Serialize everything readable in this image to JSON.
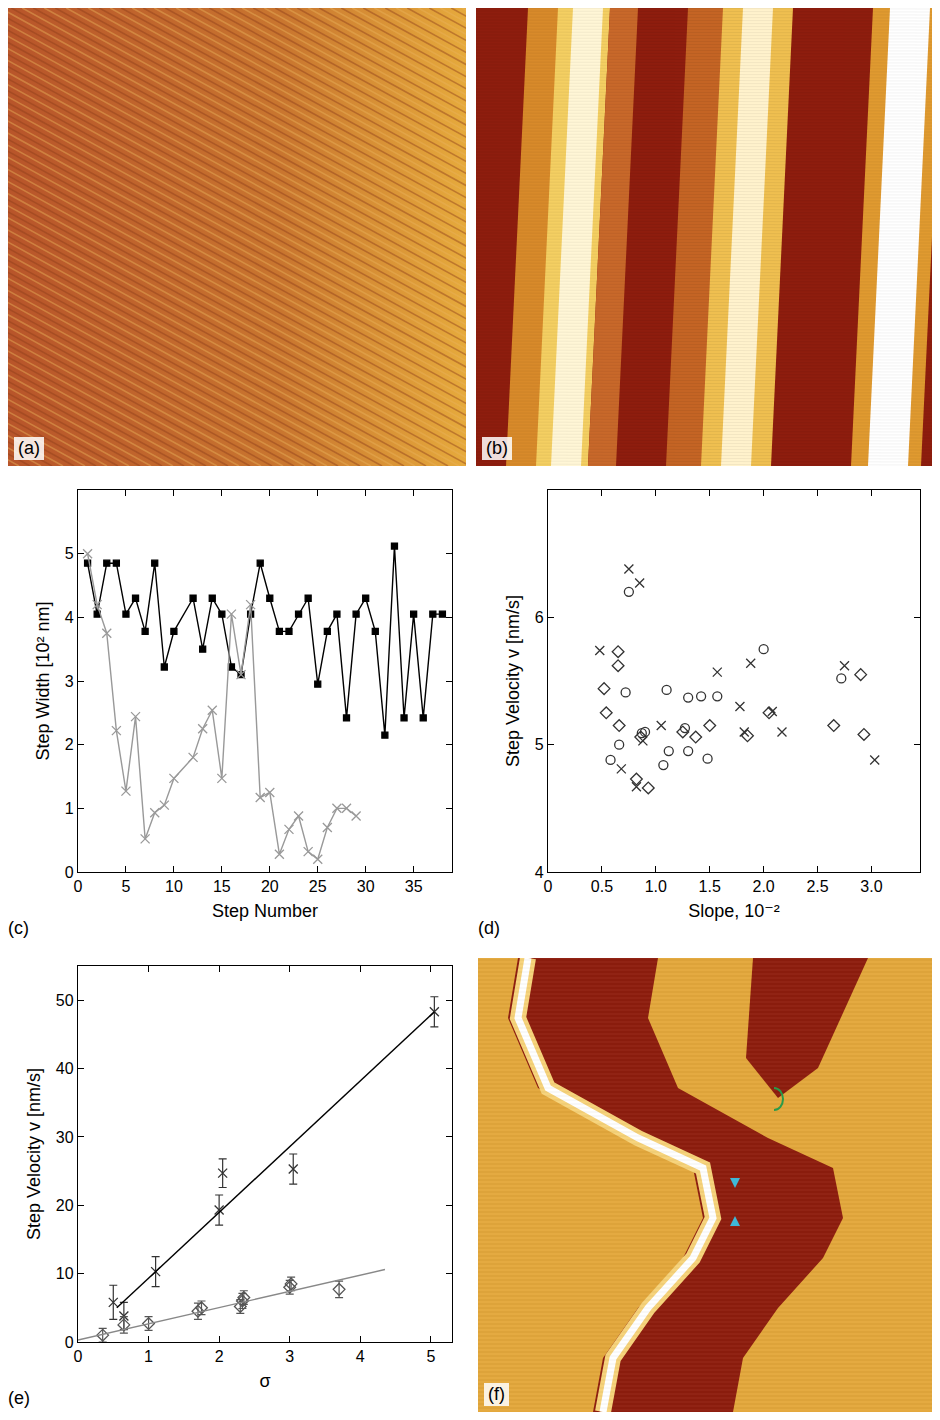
{
  "chart_data": [
    {
      "type": "image",
      "label": "(a)"
    },
    {
      "type": "image",
      "label": "(b)"
    },
    {
      "type": "line",
      "label": "(c)",
      "x_label": "Step Number",
      "y_label": "Step Width [10² nm]",
      "xlim": [
        0,
        39
      ],
      "xticks": [
        0,
        5,
        10,
        15,
        20,
        25,
        30,
        35
      ],
      "ylim": [
        0,
        6
      ],
      "yticks": [
        0,
        1,
        2,
        3,
        4,
        5
      ],
      "series": [
        {
          "color": "#000000",
          "marker": "square",
          "x": [
            1,
            2,
            3,
            4,
            5,
            6,
            7,
            8,
            9,
            10,
            12,
            13,
            14,
            15,
            16,
            17,
            18,
            19,
            20,
            21,
            22,
            23,
            24,
            25,
            26,
            27,
            28,
            29,
            30,
            31,
            32,
            33,
            34,
            35,
            36,
            37,
            38
          ],
          "values": [
            4.85,
            4.05,
            4.85,
            4.85,
            4.05,
            4.3,
            3.78,
            4.85,
            3.22,
            3.78,
            4.3,
            3.5,
            4.3,
            4.05,
            3.22,
            3.1,
            4.05,
            4.85,
            4.3,
            3.78,
            3.78,
            4.05,
            4.3,
            2.95,
            3.78,
            4.05,
            2.42,
            4.05,
            4.3,
            3.78,
            2.15,
            5.12,
            2.42,
            4.05,
            2.42,
            4.05,
            4.05
          ]
        },
        {
          "color": "#999999",
          "marker": "x",
          "x": [
            1,
            2,
            3,
            4,
            5,
            6,
            7,
            8,
            9,
            10,
            12,
            13,
            14,
            15,
            16,
            17,
            18,
            19,
            20,
            21,
            22,
            23,
            24,
            25,
            26,
            27,
            28,
            29
          ],
          "values": [
            5.0,
            4.2,
            3.75,
            2.22,
            1.27,
            2.44,
            0.52,
            0.93,
            1.05,
            1.47,
            1.8,
            2.25,
            2.54,
            1.47,
            4.05,
            3.1,
            4.2,
            1.17,
            1.25,
            0.28,
            0.67,
            0.88,
            0.32,
            0.2,
            0.7,
            1.0,
            1.0,
            0.88
          ]
        }
      ]
    },
    {
      "type": "scatter",
      "label": "(d)",
      "x_label": "Slope, 10⁻²",
      "y_label": "Step Velocity v [nm/s]",
      "xlim": [
        0,
        3.45
      ],
      "xticks": [
        0,
        0.5,
        {
          "value": 1,
          "label": "1.0"
        },
        1.5,
        {
          "value": 2,
          "label": "2.0"
        },
        2.5,
        {
          "value": 3,
          "label": "3.0"
        }
      ],
      "ylim": [
        4,
        7
      ],
      "yticks": [
        4,
        5,
        6
      ],
      "series": [
        {
          "color": "#333333",
          "marker": "x",
          "x": [
            0.48,
            0.68,
            0.75,
            0.82,
            0.85,
            0.88,
            1.05,
            1.57,
            1.78,
            1.82,
            1.88,
            2.08,
            2.17,
            2.75,
            3.03
          ],
          "values": [
            5.74,
            4.81,
            6.38,
            4.67,
            6.27,
            5.03,
            5.15,
            5.57,
            5.3,
            5.1,
            5.64,
            5.26,
            5.1,
            5.62,
            4.88
          ]
        },
        {
          "color": "#333333",
          "marker": "circle",
          "x": [
            0.58,
            0.66,
            0.72,
            0.75,
            0.87,
            0.9,
            1.07,
            1.1,
            1.12,
            1.27,
            1.3,
            1.3,
            1.42,
            1.48,
            1.57,
            2.0,
            2.72
          ],
          "values": [
            4.88,
            5.0,
            5.41,
            6.2,
            5.09,
            5.1,
            4.84,
            5.43,
            4.95,
            5.13,
            5.37,
            4.95,
            5.38,
            4.89,
            5.38,
            5.75,
            5.52
          ]
        },
        {
          "color": "#333333",
          "marker": "diamond",
          "x": [
            0.52,
            0.54,
            0.65,
            0.65,
            0.66,
            0.82,
            0.86,
            0.93,
            1.25,
            1.37,
            1.5,
            1.85,
            2.05,
            2.65,
            2.9,
            2.93
          ],
          "values": [
            5.44,
            5.25,
            5.62,
            5.73,
            5.15,
            4.73,
            5.06,
            4.66,
            5.1,
            5.06,
            5.15,
            5.07,
            5.25,
            5.15,
            5.55,
            5.08
          ]
        }
      ]
    },
    {
      "type": "scatter",
      "label": "(e)",
      "x_label": "σ",
      "y_label": "Step Velocity v [nm/s]",
      "xlim": [
        0,
        5.3
      ],
      "xticks": [
        0,
        1,
        2,
        3,
        4,
        5
      ],
      "ylim": [
        0,
        55
      ],
      "yticks": [
        0,
        10,
        20,
        30,
        40,
        50
      ],
      "series": [
        {
          "type": "scatter",
          "color": "#333333",
          "marker": "x",
          "x": [
            0.5,
            0.65,
            1.1,
            2.0,
            2.05,
            3.05,
            5.05
          ],
          "values": [
            5.8,
            3.8,
            10.3,
            19.3,
            24.7,
            25.3,
            48.3
          ],
          "error": [
            2.5,
            2,
            2.2,
            2.2,
            2.1,
            2.2,
            2.2
          ]
        },
        {
          "type": "scatter",
          "color": "#555555",
          "marker": "diamond",
          "x": [
            0.35,
            0.65,
            1.0,
            1.7,
            1.75,
            2.3,
            2.33,
            2.35,
            3.0,
            3.02,
            3.7
          ],
          "values": [
            1,
            2.5,
            2.7,
            4.5,
            5,
            5.2,
            6,
            6.5,
            8,
            8.5,
            7.7
          ],
          "error": [
            1,
            1.2,
            1,
            1.2,
            1,
            1,
            1.1,
            1,
            1,
            1,
            1.2
          ]
        },
        {
          "type": "line",
          "color": "#000000",
          "line_style": "solid",
          "x": [
            0.55,
            5.05
          ],
          "values": [
            5,
            48.3
          ]
        },
        {
          "type": "line",
          "color": "#888888",
          "line_style": "solid",
          "x": [
            0,
            4.35
          ],
          "values": [
            0.3,
            10.6
          ]
        }
      ]
    },
    {
      "type": "image",
      "label": "(f)"
    }
  ]
}
